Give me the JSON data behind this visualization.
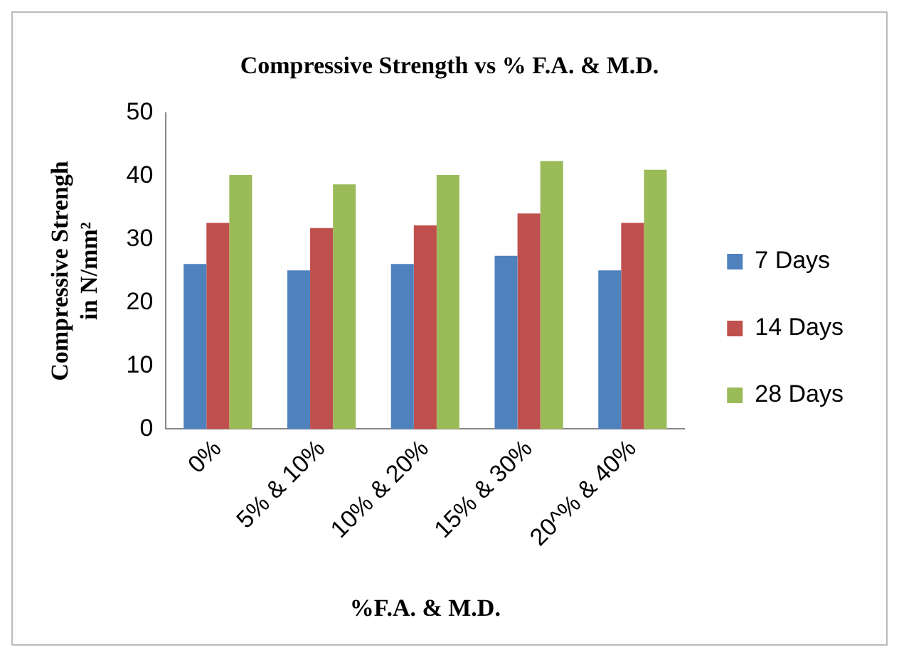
{
  "chart_data": {
    "type": "bar",
    "title": "Compressive Strength vs % F.A. & M.D.",
    "xlabel": "%F.A. & M.D.",
    "ylabel": "Compressive Strengh in N/mm²",
    "categories": [
      "0%",
      "5% & 10%",
      "10% & 20%",
      "15% & 30%",
      "20^% & 40%"
    ],
    "series": [
      {
        "name": "7 Days",
        "color": "#4f81bd",
        "values": [
          26.1,
          25.1,
          26.1,
          27.4,
          25.1
        ]
      },
      {
        "name": "14 Days",
        "color": "#c0504d",
        "values": [
          32.6,
          31.8,
          32.2,
          34.1,
          32.6
        ]
      },
      {
        "name": "28 Days",
        "color": "#9bbb59",
        "values": [
          40.2,
          38.7,
          40.2,
          42.4,
          41.0
        ]
      }
    ],
    "ylim": [
      0,
      50
    ],
    "yticks": [
      0,
      10,
      20,
      30,
      40,
      50
    ],
    "grid": false,
    "legend": "right"
  }
}
